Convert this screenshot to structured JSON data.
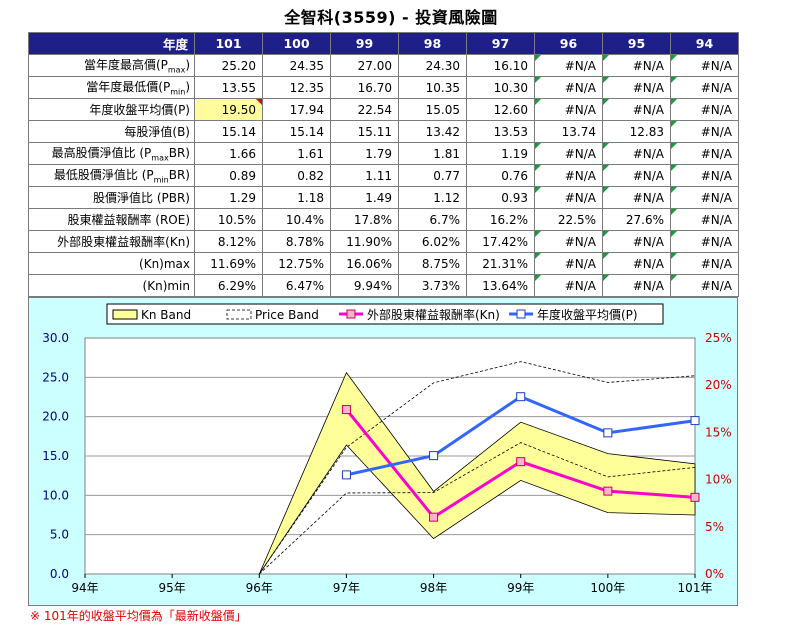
{
  "title": "全智科(3559) -  投資風險圖",
  "table": {
    "corner": "年度",
    "years": [
      "101",
      "100",
      "99",
      "98",
      "97",
      "96",
      "95",
      "94"
    ],
    "rows": [
      {
        "label": "當年度最高價(P",
        "sub": "max",
        "tail": ")",
        "values": [
          "25.20",
          "24.35",
          "27.00",
          "24.30",
          "16.10",
          "#N/A",
          "#N/A",
          "#N/A"
        ]
      },
      {
        "label": "當年度最低價(P",
        "sub": "min",
        "tail": ")",
        "values": [
          "13.55",
          "12.35",
          "16.70",
          "10.35",
          "10.30",
          "#N/A",
          "#N/A",
          "#N/A"
        ]
      },
      {
        "label": "年度收盤平均價(P)",
        "sub": "",
        "tail": "",
        "values": [
          "19.50",
          "17.94",
          "22.54",
          "15.05",
          "12.60",
          "#N/A",
          "#N/A",
          "#N/A"
        ]
      },
      {
        "label": "每股淨值(B)",
        "sub": "",
        "tail": "",
        "values": [
          "15.14",
          "15.14",
          "15.11",
          "13.42",
          "13.53",
          "13.74",
          "12.83",
          "#N/A"
        ]
      },
      {
        "label": "最高股價淨值比 (P",
        "sub": "max",
        "tail": "BR)",
        "values": [
          "1.66",
          "1.61",
          "1.79",
          "1.81",
          "1.19",
          "#N/A",
          "#N/A",
          "#N/A"
        ]
      },
      {
        "label": "最低股價淨值比 (P",
        "sub": "min",
        "tail": "BR)",
        "values": [
          "0.89",
          "0.82",
          "1.11",
          "0.77",
          "0.76",
          "#N/A",
          "#N/A",
          "#N/A"
        ]
      },
      {
        "label": "股價淨值比 (PBR)",
        "sub": "",
        "tail": "",
        "values": [
          "1.29",
          "1.18",
          "1.49",
          "1.12",
          "0.93",
          "#N/A",
          "#N/A",
          "#N/A"
        ]
      },
      {
        "label": "股東權益報酬率 (ROE)",
        "sub": "",
        "tail": "",
        "values": [
          "10.5%",
          "10.4%",
          "17.8%",
          "6.7%",
          "16.2%",
          "22.5%",
          "27.6%",
          "#N/A"
        ]
      },
      {
        "label": "外部股東權益報酬率(Kn)",
        "sub": "",
        "tail": "",
        "values": [
          "8.12%",
          "8.78%",
          "11.90%",
          "6.02%",
          "17.42%",
          "#N/A",
          "#N/A",
          "#N/A"
        ]
      },
      {
        "label": "(Kn)max",
        "sub": "",
        "tail": "",
        "values": [
          "11.69%",
          "12.75%",
          "16.06%",
          "8.75%",
          "21.31%",
          "#N/A",
          "#N/A",
          "#N/A"
        ]
      },
      {
        "label": "(Kn)min",
        "sub": "",
        "tail": "",
        "values": [
          "6.29%",
          "6.47%",
          "9.94%",
          "3.73%",
          "13.64%",
          "#N/A",
          "#N/A",
          "#N/A"
        ]
      }
    ]
  },
  "chart_data": {
    "type": "line",
    "categories": [
      "94年",
      "95年",
      "96年",
      "97年",
      "98年",
      "99年",
      "100年",
      "101年"
    ],
    "ylim_left": [
      0,
      30
    ],
    "yticks_left": [
      "0.0",
      "5.0",
      "10.0",
      "15.0",
      "20.0",
      "25.0",
      "30.0"
    ],
    "ylim_right": [
      0,
      25
    ],
    "yticks_right": [
      "0%",
      "5%",
      "10%",
      "15%",
      "20%",
      "25%"
    ],
    "legend_placement": "top",
    "legend": [
      "Kn Band",
      "Price Band",
      "外部股東權益報酬率(Kn)",
      "年度收盤平均價(P)"
    ],
    "kn_band_upper": [
      null,
      null,
      0,
      25.6,
      10.5,
      19.3,
      15.3,
      14.0
    ],
    "kn_band_lower": [
      null,
      null,
      0,
      16.4,
      4.5,
      11.9,
      7.8,
      7.5
    ],
    "price_band_upper": [
      null,
      null,
      0,
      16.1,
      24.3,
      27.0,
      24.35,
      25.2
    ],
    "price_band_lower": [
      null,
      null,
      0,
      10.3,
      10.35,
      16.7,
      12.35,
      13.55
    ],
    "series": [
      {
        "name": "外部股東權益報酬率(Kn)",
        "axis": "right",
        "color": "#ff00cc",
        "values": [
          null,
          null,
          null,
          17.42,
          6.02,
          11.9,
          8.78,
          8.12
        ]
      },
      {
        "name": "年度收盤平均價(P)",
        "axis": "left",
        "color": "#3366ff",
        "values": [
          null,
          null,
          null,
          12.6,
          15.05,
          22.54,
          17.94,
          19.5
        ]
      }
    ],
    "colors": {
      "kn_band": "#ffff99",
      "plot_bg": "#ffffff",
      "panel_bg": "#ccffff",
      "grid": "#9a9a9a"
    }
  },
  "note": "※ 101年的收盤平均價為「最新收盤價」"
}
